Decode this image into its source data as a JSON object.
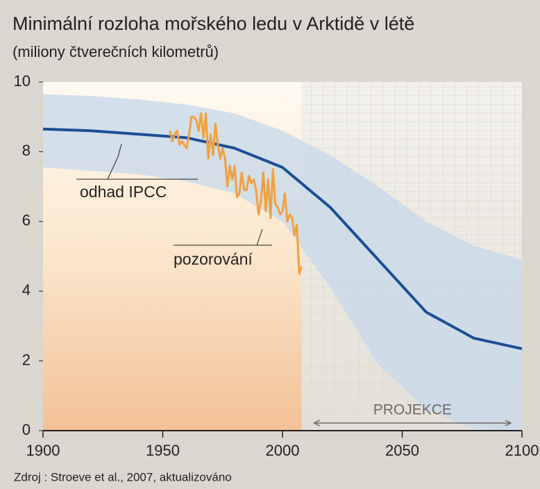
{
  "chart_data": {
    "type": "line",
    "title": "Minimální rozloha mořského ledu v Arktidě v létě",
    "subtitle": "(miliony čtverečních kilometrů)",
    "source": "Zdroj : Stroeve et al., 2007, aktualizováno",
    "annotation": "PROJEKCE",
    "xlim": [
      1900,
      2100
    ],
    "xticks": [
      1900,
      1950,
      2000,
      2050,
      2100
    ],
    "ylim": [
      0,
      10
    ],
    "yticks": [
      0,
      2,
      4,
      6,
      8,
      10
    ],
    "band": {
      "color": "#c8d9ea",
      "x": [
        1900,
        1920,
        1940,
        1960,
        1980,
        2000,
        2020,
        2040,
        2060,
        2080,
        2100
      ],
      "lower": [
        7.55,
        7.45,
        7.35,
        7.15,
        6.8,
        6.0,
        4.1,
        1.9,
        0.6,
        0.05,
        0
      ],
      "upper": [
        9.65,
        9.6,
        9.5,
        9.35,
        9.1,
        8.6,
        7.9,
        7.0,
        6.0,
        5.3,
        4.9
      ]
    },
    "series": [
      {
        "name": "odhad IPCC",
        "color": "#1b4f95",
        "x": [
          1900,
          1920,
          1940,
          1960,
          1980,
          2000,
          2020,
          2040,
          2060,
          2080,
          2100
        ],
        "values": [
          8.65,
          8.6,
          8.5,
          8.4,
          8.1,
          7.55,
          6.4,
          4.9,
          3.4,
          2.65,
          2.35
        ]
      },
      {
        "name": "pozorování",
        "color": "#f2a13e",
        "x": [
          1953,
          1954,
          1955,
          1956,
          1957,
          1958,
          1959,
          1960,
          1961,
          1962,
          1963,
          1964,
          1965,
          1966,
          1967,
          1968,
          1969,
          1970,
          1971,
          1972,
          1973,
          1974,
          1975,
          1976,
          1977,
          1978,
          1979,
          1980,
          1981,
          1982,
          1983,
          1984,
          1985,
          1986,
          1987,
          1988,
          1989,
          1990,
          1991,
          1992,
          1993,
          1994,
          1995,
          1996,
          1997,
          1998,
          1999,
          2000,
          2001,
          2002,
          2003,
          2004,
          2005,
          2006,
          2007,
          2008
        ],
        "values": [
          8.6,
          8.3,
          8.5,
          8.6,
          8.2,
          8.3,
          8.2,
          8.1,
          8.5,
          9.0,
          9.0,
          8.9,
          8.6,
          9.1,
          8.4,
          9.1,
          7.8,
          8.5,
          7.9,
          8.8,
          8.2,
          7.8,
          8.1,
          7.8,
          7.0,
          7.6,
          7.2,
          7.6,
          6.7,
          6.8,
          7.4,
          6.9,
          6.9,
          7.3,
          7.1,
          7.2,
          6.9,
          6.2,
          6.6,
          7.4,
          6.3,
          7.2,
          6.1,
          7.5,
          6.5,
          6.4,
          6.2,
          6.3,
          6.8,
          6.0,
          6.2,
          6.1,
          5.6,
          5.9,
          4.5,
          4.7
        ]
      }
    ]
  }
}
